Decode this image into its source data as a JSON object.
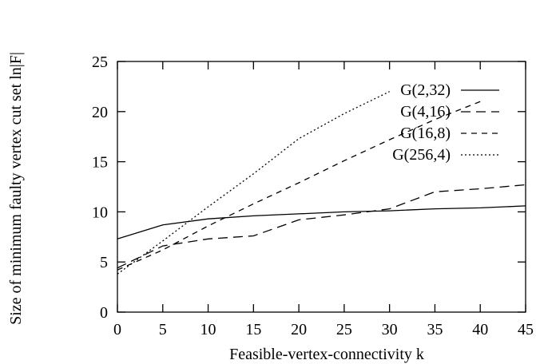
{
  "chart_data": {
    "type": "line",
    "title": "",
    "xlabel": "Feasible-vertex-connectivity k",
    "ylabel": "Size of minimum faulty vertex cut set ln|F|",
    "xlim": [
      0,
      45
    ],
    "ylim": [
      0,
      25
    ],
    "xticks": [
      0,
      5,
      10,
      15,
      20,
      25,
      30,
      35,
      40,
      45
    ],
    "yticks": [
      0,
      5,
      10,
      15,
      20,
      25
    ],
    "grid": false,
    "legend_position": "top-right",
    "series": [
      {
        "name": "G(2,32)",
        "dash": "solid",
        "x": [
          0,
          5,
          10,
          15,
          20,
          25,
          30,
          35,
          40,
          45
        ],
        "values": [
          7.3,
          8.7,
          9.3,
          9.6,
          9.8,
          10.0,
          10.1,
          10.3,
          10.4,
          10.6
        ]
      },
      {
        "name": "G(4,16)",
        "dash": "long-dash",
        "x": [
          0,
          5,
          10,
          15,
          20,
          25,
          30,
          35,
          40,
          45
        ],
        "values": [
          4.4,
          6.6,
          7.3,
          7.6,
          9.2,
          9.7,
          10.3,
          12.0,
          12.3,
          12.7
        ]
      },
      {
        "name": "G(16,8)",
        "dash": "short-dash",
        "x": [
          0,
          5,
          10,
          15,
          20,
          25,
          30,
          35,
          40
        ],
        "values": [
          4.2,
          6.2,
          8.6,
          10.8,
          12.9,
          15.1,
          17.2,
          19.2,
          21.0
        ]
      },
      {
        "name": "G(256,4)",
        "dash": "dotted",
        "x": [
          0,
          5,
          10,
          15,
          20,
          25,
          30
        ],
        "values": [
          3.8,
          7.1,
          10.5,
          13.8,
          17.3,
          19.8,
          22.0
        ]
      }
    ]
  }
}
